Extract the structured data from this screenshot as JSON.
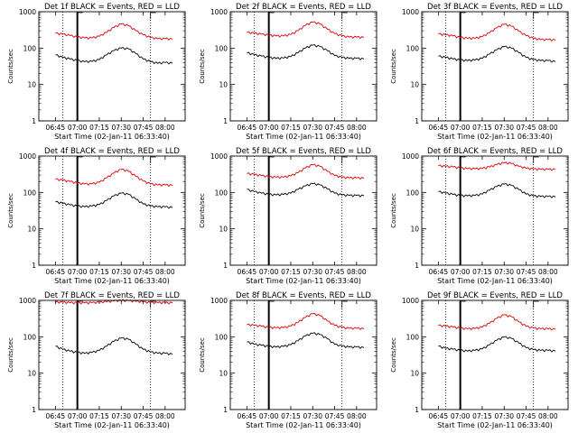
{
  "figure_colors": {
    "events": "#000000",
    "lld": "#dd0000",
    "axes": "#000000",
    "background": "#ffffff"
  },
  "chart_data": [
    {
      "type": "line",
      "title": "Det 1f BLACK = Events, RED = LLD",
      "xlabel": "Start Time (02-Jan-11 06:33:40)",
      "ylabel": "Counts/sec",
      "y_scale": "log",
      "ylim": [
        1,
        1000
      ],
      "xlim": [
        "06:33:40",
        "08:13:40"
      ],
      "x_ticks": [
        "06:45",
        "07:00",
        "07:15",
        "07:30",
        "07:45",
        "08:00"
      ],
      "y_ticks": [
        1,
        10,
        100,
        1000
      ],
      "x": [
        "06:45",
        "06:50",
        "06:55",
        "07:00",
        "07:05",
        "07:10",
        "07:15",
        "07:20",
        "07:25",
        "07:30",
        "07:35",
        "07:40",
        "07:45",
        "07:50",
        "07:55",
        "08:00",
        "08:05"
      ],
      "series": [
        {
          "name": "Events",
          "color": "#000000",
          "values": [
            65,
            55,
            50,
            45,
            42,
            43,
            48,
            65,
            85,
            100,
            95,
            70,
            50,
            42,
            38,
            40,
            38
          ]
        },
        {
          "name": "LLD",
          "color": "#dd0000",
          "values": [
            255,
            240,
            220,
            200,
            190,
            190,
            210,
            270,
            370,
            460,
            410,
            300,
            230,
            195,
            180,
            180,
            175
          ]
        }
      ],
      "vlines_dotted": [
        "06:50",
        "07:50"
      ],
      "vlines_solid": [
        "07:00"
      ],
      "markers": [
        "07:00",
        "07:50"
      ]
    },
    {
      "type": "line",
      "title": "Det 2f BLACK = Events, RED = LLD",
      "xlabel": "Start Time (02-Jan-11 06:33:40)",
      "ylabel": "Counts/sec",
      "y_scale": "log",
      "ylim": [
        1,
        1000
      ],
      "xlim": [
        "06:33:40",
        "08:13:40"
      ],
      "x_ticks": [
        "06:45",
        "07:00",
        "07:15",
        "07:30",
        "07:45",
        "08:00"
      ],
      "y_ticks": [
        1,
        10,
        100,
        1000
      ],
      "x": [
        "06:45",
        "06:50",
        "06:55",
        "07:00",
        "07:05",
        "07:10",
        "07:15",
        "07:20",
        "07:25",
        "07:30",
        "07:35",
        "07:40",
        "07:45",
        "07:50",
        "07:55",
        "08:00",
        "08:05"
      ],
      "series": [
        {
          "name": "Events",
          "color": "#000000",
          "values": [
            75,
            65,
            60,
            55,
            52,
            53,
            58,
            75,
            100,
            120,
            110,
            85,
            62,
            55,
            52,
            52,
            50
          ]
        },
        {
          "name": "LLD",
          "color": "#dd0000",
          "values": [
            270,
            255,
            240,
            225,
            215,
            215,
            235,
            300,
            420,
            520,
            460,
            330,
            250,
            215,
            200,
            200,
            195
          ]
        }
      ],
      "vlines_dotted": [
        "06:50",
        "07:50"
      ],
      "vlines_solid": [
        "07:00"
      ],
      "markers": [
        "07:00",
        "07:50"
      ]
    },
    {
      "type": "line",
      "title": "Det 3f BLACK = Events, RED = LLD",
      "xlabel": "Start Time (02-Jan-11 06:33:40)",
      "ylabel": "Counts/sec",
      "y_scale": "log",
      "ylim": [
        1,
        1000
      ],
      "xlim": [
        "06:33:40",
        "08:13:40"
      ],
      "x_ticks": [
        "06:45",
        "07:00",
        "07:15",
        "07:30",
        "07:45",
        "08:00"
      ],
      "y_ticks": [
        1,
        10,
        100,
        1000
      ],
      "x": [
        "06:45",
        "06:50",
        "06:55",
        "07:00",
        "07:05",
        "07:10",
        "07:15",
        "07:20",
        "07:25",
        "07:30",
        "07:35",
        "07:40",
        "07:45",
        "07:50",
        "07:55",
        "08:00",
        "08:05"
      ],
      "series": [
        {
          "name": "Events",
          "color": "#000000",
          "values": [
            60,
            55,
            50,
            47,
            45,
            47,
            52,
            68,
            90,
            110,
            100,
            75,
            55,
            48,
            45,
            45,
            42
          ]
        },
        {
          "name": "LLD",
          "color": "#dd0000",
          "values": [
            245,
            230,
            215,
            195,
            185,
            185,
            205,
            265,
            360,
            450,
            400,
            290,
            220,
            185,
            170,
            170,
            165
          ]
        }
      ],
      "vlines_dotted": [
        "06:50",
        "07:50"
      ],
      "vlines_solid": [
        "07:00"
      ],
      "markers": [
        "07:00",
        "07:50"
      ]
    },
    {
      "type": "line",
      "title": "Det 4f BLACK = Events, RED = LLD",
      "xlabel": "Start Time (02-Jan-11 06:33:40)",
      "ylabel": "Counts/sec",
      "y_scale": "log",
      "ylim": [
        1,
        1000
      ],
      "xlim": [
        "06:33:40",
        "08:13:40"
      ],
      "x_ticks": [
        "06:45",
        "07:00",
        "07:15",
        "07:30",
        "07:45",
        "08:00"
      ],
      "y_ticks": [
        1,
        10,
        100,
        1000
      ],
      "x": [
        "06:45",
        "06:50",
        "06:55",
        "07:00",
        "07:05",
        "07:10",
        "07:15",
        "07:20",
        "07:25",
        "07:30",
        "07:35",
        "07:40",
        "07:45",
        "07:50",
        "07:55",
        "08:00",
        "08:05"
      ],
      "series": [
        {
          "name": "Events",
          "color": "#000000",
          "values": [
            55,
            50,
            45,
            42,
            40,
            42,
            46,
            60,
            80,
            95,
            88,
            65,
            48,
            42,
            40,
            40,
            38
          ]
        },
        {
          "name": "LLD",
          "color": "#dd0000",
          "values": [
            230,
            215,
            200,
            180,
            170,
            170,
            190,
            250,
            340,
            430,
            380,
            275,
            205,
            170,
            160,
            160,
            155
          ]
        }
      ],
      "vlines_dotted": [
        "06:50",
        "07:50"
      ],
      "vlines_solid": [
        "07:00"
      ],
      "markers": [
        "07:00",
        "07:50"
      ]
    },
    {
      "type": "line",
      "title": "Det 5f BLACK = Events, RED = LLD",
      "xlabel": "Start Time (02-Jan-11 06:33:40)",
      "ylabel": "Counts/sec",
      "y_scale": "log",
      "ylim": [
        1,
        1000
      ],
      "xlim": [
        "06:33:40",
        "08:13:40"
      ],
      "x_ticks": [
        "06:45",
        "07:00",
        "07:15",
        "07:30",
        "07:45",
        "08:00"
      ],
      "y_ticks": [
        1,
        10,
        100,
        1000
      ],
      "x": [
        "06:45",
        "06:50",
        "06:55",
        "07:00",
        "07:05",
        "07:10",
        "07:15",
        "07:20",
        "07:25",
        "07:30",
        "07:35",
        "07:40",
        "07:45",
        "07:50",
        "07:55",
        "08:00",
        "08:05"
      ],
      "series": [
        {
          "name": "Events",
          "color": "#000000",
          "values": [
            120,
            105,
            95,
            88,
            85,
            88,
            95,
            120,
            150,
            175,
            160,
            125,
            95,
            85,
            82,
            82,
            80
          ]
        },
        {
          "name": "LLD",
          "color": "#dd0000",
          "values": [
            330,
            310,
            290,
            270,
            260,
            262,
            285,
            350,
            470,
            580,
            520,
            380,
            290,
            260,
            250,
            250,
            245
          ]
        }
      ],
      "vlines_dotted": [
        "06:50",
        "07:50"
      ],
      "vlines_solid": [
        "07:00"
      ],
      "markers": [
        "07:00",
        "07:50"
      ]
    },
    {
      "type": "line",
      "title": "Det 6f BLACK = Events, RED = LLD",
      "xlabel": "Start Time (02-Jan-11 06:33:40)",
      "ylabel": "Counts/sec",
      "y_scale": "log",
      "ylim": [
        1,
        1000
      ],
      "xlim": [
        "06:33:40",
        "08:13:40"
      ],
      "x_ticks": [
        "06:45",
        "07:00",
        "07:15",
        "07:30",
        "07:45",
        "08:00"
      ],
      "y_ticks": [
        1,
        10,
        100,
        1000
      ],
      "x": [
        "06:45",
        "06:50",
        "06:55",
        "07:00",
        "07:05",
        "07:10",
        "07:15",
        "07:20",
        "07:25",
        "07:30",
        "07:35",
        "07:40",
        "07:45",
        "07:50",
        "07:55",
        "08:00",
        "08:05"
      ],
      "series": [
        {
          "name": "Events",
          "color": "#000000",
          "values": [
            105,
            95,
            88,
            82,
            80,
            82,
            90,
            115,
            145,
            170,
            155,
            120,
            90,
            80,
            77,
            77,
            75
          ]
        },
        {
          "name": "LLD",
          "color": "#dd0000",
          "values": [
            540,
            520,
            500,
            470,
            450,
            445,
            455,
            500,
            580,
            650,
            620,
            520,
            460,
            440,
            430,
            430,
            425
          ]
        }
      ],
      "vlines_dotted": [
        "06:50",
        "07:50"
      ],
      "vlines_solid": [
        "07:00"
      ],
      "markers": [
        "07:00",
        "07:50"
      ]
    },
    {
      "type": "line",
      "title": "Det 7f BLACK = Events, RED = LLD",
      "xlabel": "Start Time (02-Jan-11 06:33:40)",
      "ylabel": "Counts/sec",
      "y_scale": "log",
      "ylim": [
        1,
        1000
      ],
      "xlim": [
        "06:33:40",
        "08:13:40"
      ],
      "x_ticks": [
        "06:45",
        "07:00",
        "07:15",
        "07:30",
        "07:45",
        "08:00"
      ],
      "y_ticks": [
        1,
        10,
        100,
        1000
      ],
      "x": [
        "06:45",
        "06:50",
        "06:55",
        "07:00",
        "07:05",
        "07:10",
        "07:15",
        "07:20",
        "07:25",
        "07:30",
        "07:35",
        "07:40",
        "07:45",
        "07:50",
        "07:55",
        "08:00",
        "08:05"
      ],
      "series": [
        {
          "name": "Events",
          "color": "#000000",
          "values": [
            55,
            45,
            40,
            37,
            35,
            37,
            42,
            55,
            75,
            92,
            85,
            62,
            45,
            38,
            35,
            35,
            33
          ]
        },
        {
          "name": "LLD",
          "color": "#dd0000",
          "values": [
            900,
            880,
            860,
            850,
            850,
            860,
            880,
            920,
            960,
            1000,
            980,
            940,
            900,
            870,
            860,
            860,
            850
          ]
        }
      ],
      "vlines_dotted": [
        "06:50",
        "07:50"
      ],
      "vlines_solid": [
        "07:00"
      ],
      "markers": [
        "07:00",
        "07:50"
      ]
    },
    {
      "type": "line",
      "title": "Det 8f BLACK = Events, RED = LLD",
      "xlabel": "Start Time (02-Jan-11 06:33:40)",
      "ylabel": "Counts/sec",
      "y_scale": "log",
      "ylim": [
        1,
        1000
      ],
      "xlim": [
        "06:33:40",
        "08:13:40"
      ],
      "x_ticks": [
        "06:45",
        "07:00",
        "07:15",
        "07:30",
        "07:45",
        "08:00"
      ],
      "y_ticks": [
        1,
        10,
        100,
        1000
      ],
      "x": [
        "06:45",
        "06:50",
        "06:55",
        "07:00",
        "07:05",
        "07:10",
        "07:15",
        "07:20",
        "07:25",
        "07:30",
        "07:35",
        "07:40",
        "07:45",
        "07:50",
        "07:55",
        "08:00",
        "08:05"
      ],
      "series": [
        {
          "name": "Events",
          "color": "#000000",
          "values": [
            72,
            62,
            58,
            54,
            52,
            54,
            60,
            78,
            105,
            125,
            115,
            88,
            62,
            55,
            52,
            52,
            50
          ]
        },
        {
          "name": "LLD",
          "color": "#dd0000",
          "values": [
            215,
            205,
            195,
            180,
            175,
            178,
            195,
            250,
            340,
            430,
            380,
            270,
            205,
            180,
            170,
            170,
            165
          ]
        }
      ],
      "vlines_dotted": [
        "06:50",
        "07:50"
      ],
      "vlines_solid": [
        "07:00"
      ],
      "markers": [
        "07:00",
        "07:50"
      ]
    },
    {
      "type": "line",
      "title": "Det 9f BLACK = Events, RED = LLD",
      "xlabel": "Start Time (02-Jan-11 06:33:40)",
      "ylabel": "Counts/sec",
      "y_scale": "log",
      "ylim": [
        1,
        1000
      ],
      "xlim": [
        "06:33:40",
        "08:13:40"
      ],
      "x_ticks": [
        "06:45",
        "07:00",
        "07:15",
        "07:30",
        "07:45",
        "08:00"
      ],
      "y_ticks": [
        1,
        10,
        100,
        1000
      ],
      "x": [
        "06:45",
        "06:50",
        "06:55",
        "07:00",
        "07:05",
        "07:10",
        "07:15",
        "07:20",
        "07:25",
        "07:30",
        "07:35",
        "07:40",
        "07:45",
        "07:50",
        "07:55",
        "08:00",
        "08:05"
      ],
      "series": [
        {
          "name": "Events",
          "color": "#000000",
          "values": [
            55,
            48,
            45,
            42,
            40,
            42,
            46,
            60,
            80,
            98,
            90,
            67,
            50,
            44,
            42,
            42,
            40
          ]
        },
        {
          "name": "LLD",
          "color": "#dd0000",
          "values": [
            205,
            195,
            185,
            170,
            165,
            168,
            185,
            235,
            320,
            400,
            355,
            255,
            195,
            172,
            165,
            165,
            160
          ]
        }
      ],
      "vlines_dotted": [
        "06:50",
        "07:50"
      ],
      "vlines_solid": [
        "07:00"
      ],
      "markers": [
        "07:00",
        "07:50"
      ]
    }
  ]
}
